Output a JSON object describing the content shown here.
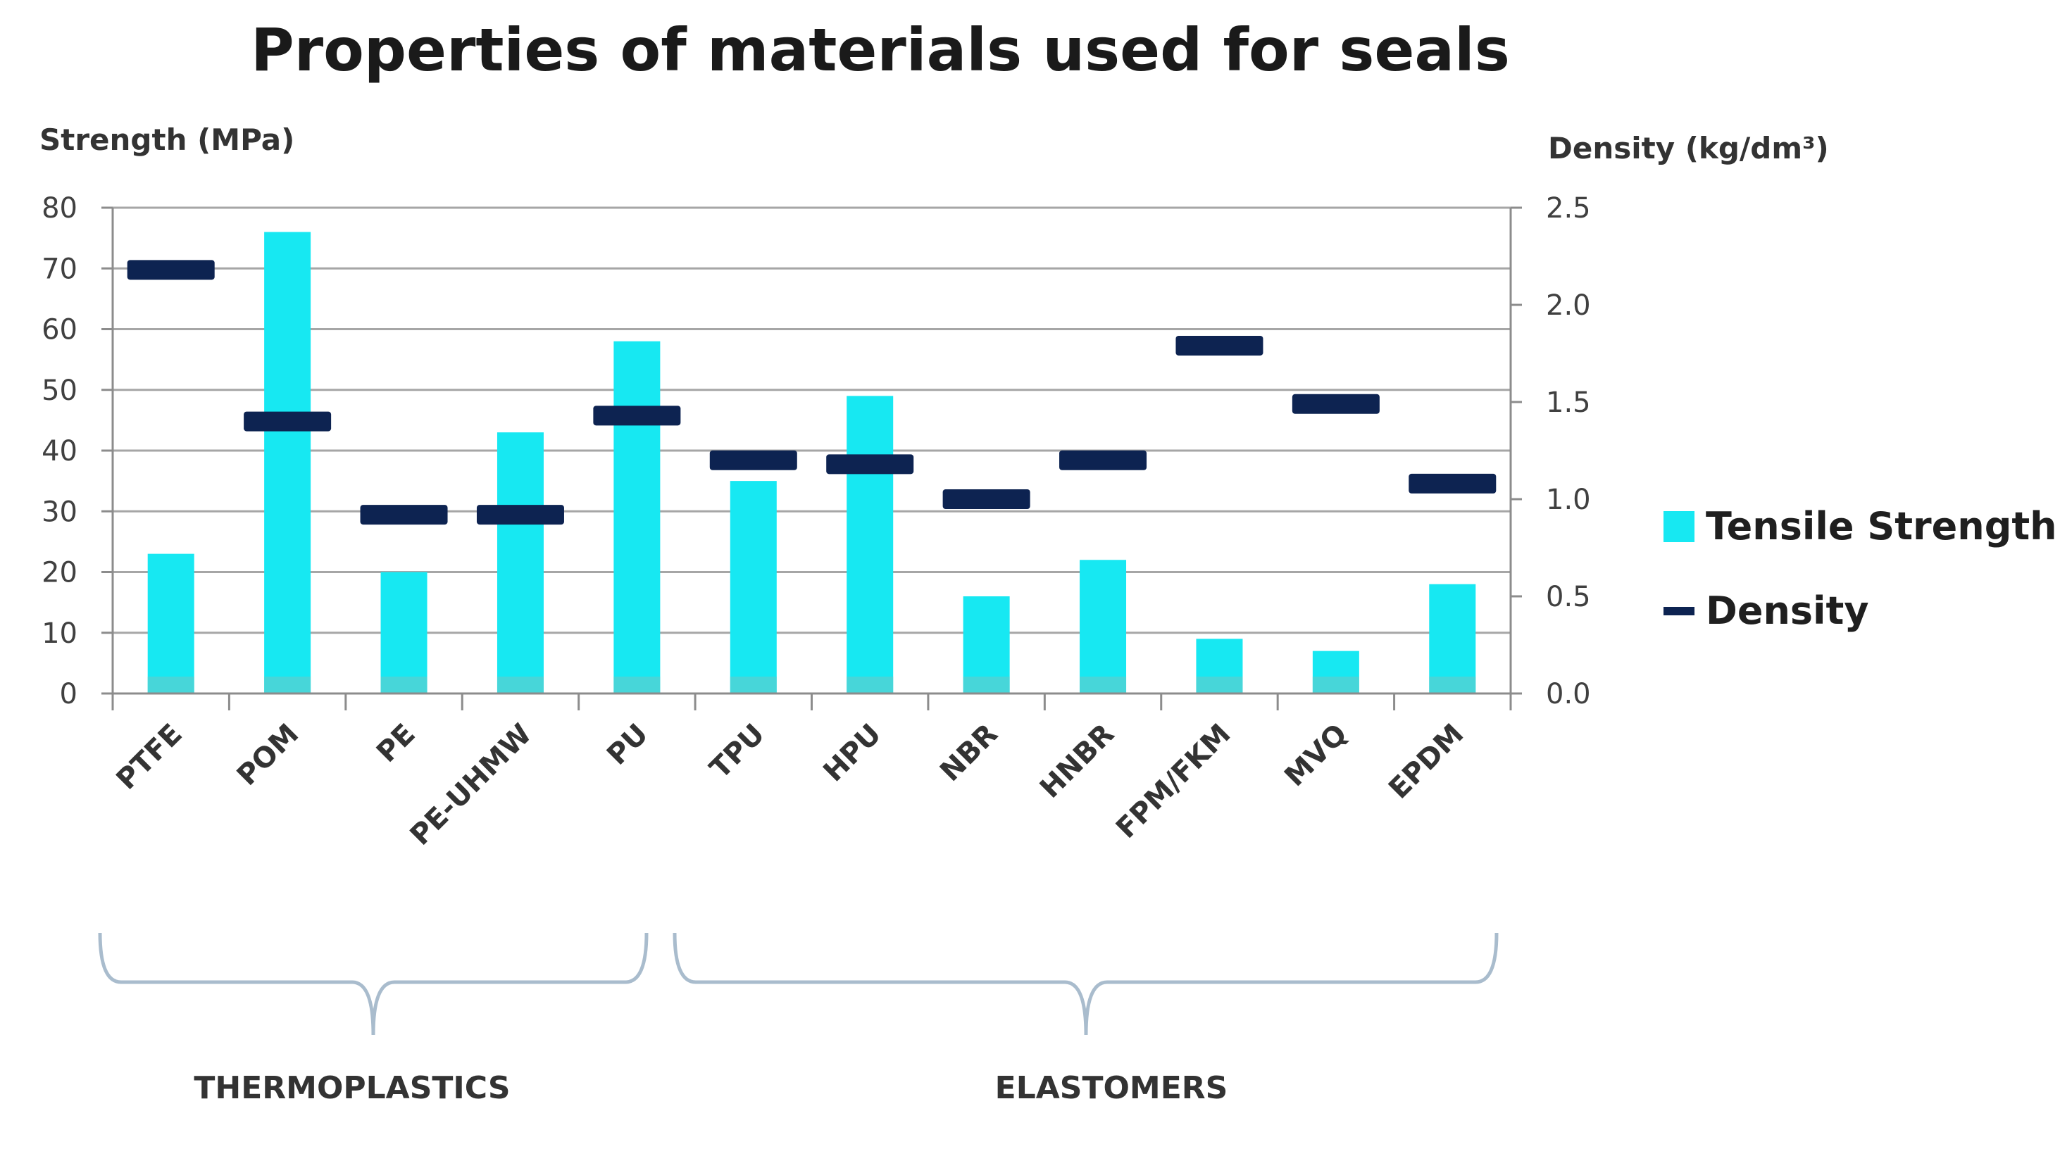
{
  "colors": {
    "bar": "#17e8f2",
    "bar_base": "#5ccfcf",
    "density": "#0d2351",
    "grid": "#a6a6a6",
    "axis": "#8c8c8c",
    "brace": "#a9bccd"
  },
  "chart_data": {
    "type": "bar",
    "title": "Properties of materials used for seals",
    "ylabel": "Strength (MPa)",
    "y2label": "Density (kg/dm³)",
    "ylim": [
      0,
      80
    ],
    "y2lim": [
      0,
      2.5
    ],
    "yticks": [
      "0",
      "10",
      "20",
      "30",
      "40",
      "50",
      "60",
      "70",
      "80"
    ],
    "y2ticks": [
      "0.0",
      "0.5",
      "1.0",
      "1.5",
      "2.0",
      "2.5"
    ],
    "grid": true,
    "categories": [
      "PTFE",
      "POM",
      "PE",
      "PE-UHMW",
      "PU",
      "TPU",
      "HPU",
      "NBR",
      "HNBR",
      "FPM/FKM",
      "MVQ",
      "EPDM"
    ],
    "series": [
      {
        "name": "Tensile Strength",
        "type": "bar",
        "axis": "left",
        "values": [
          23,
          76,
          20,
          43,
          58,
          35,
          49,
          16,
          22,
          9,
          7,
          18
        ]
      },
      {
        "name": "Density",
        "type": "marker",
        "axis": "right",
        "values": [
          2.18,
          1.4,
          0.92,
          0.92,
          1.43,
          1.2,
          1.18,
          1.0,
          1.2,
          1.79,
          1.49,
          1.08
        ]
      }
    ],
    "legend": [
      "Tensile Strength",
      "Density"
    ],
    "legend_position": "right",
    "groups": [
      {
        "label": "THERMOPLASTICS",
        "categories": [
          "PTFE",
          "POM",
          "PE",
          "PE-UHMW",
          "PU"
        ]
      },
      {
        "label": "ELASTOMERS",
        "categories": [
          "TPU",
          "HPU",
          "NBR",
          "HNBR",
          "FPM/FKM",
          "MVQ",
          "EPDM"
        ]
      }
    ]
  }
}
